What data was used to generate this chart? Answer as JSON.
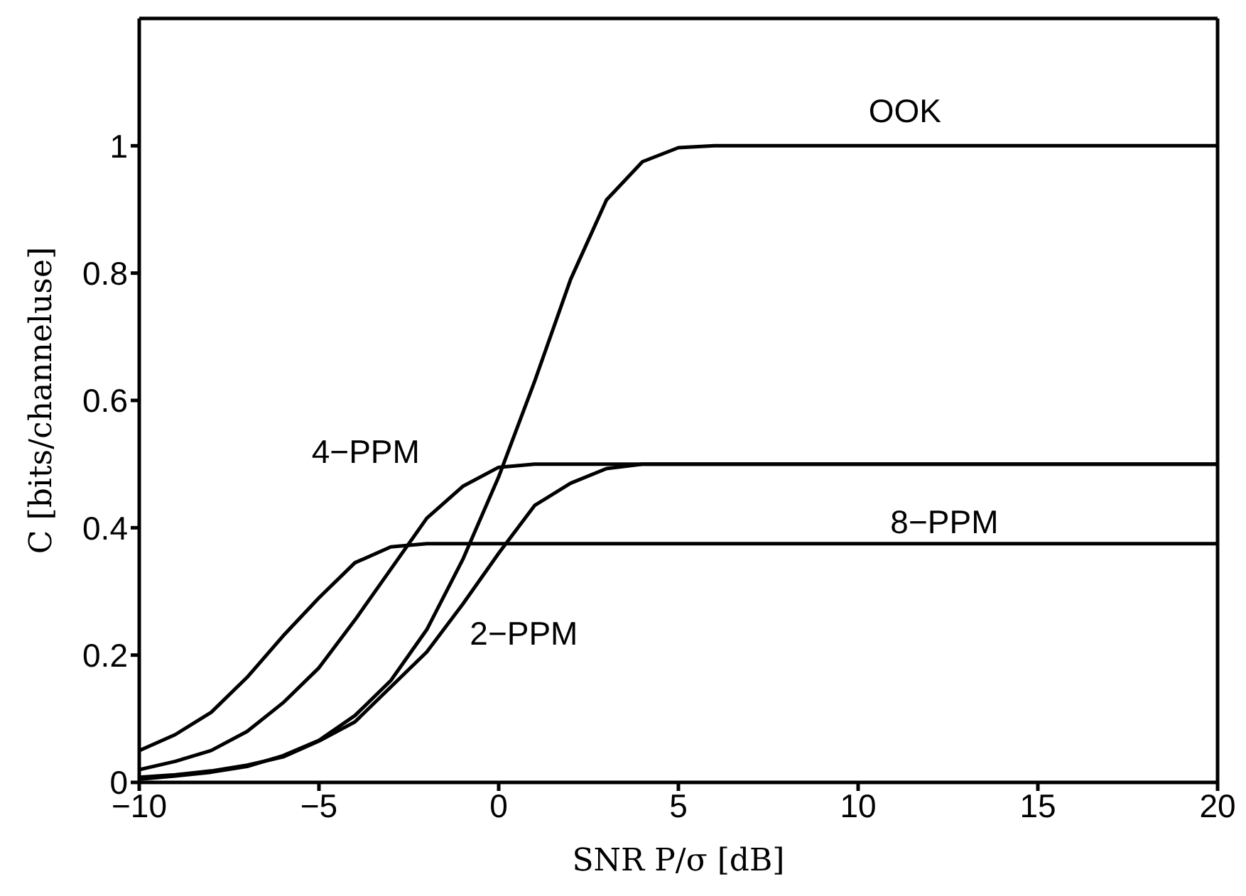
{
  "chart_data": {
    "type": "line",
    "xlabel": "SNR P/σ   [dB]",
    "ylabel": "C [bits/channeluse]",
    "xlim": [
      -10,
      20
    ],
    "ylim": [
      0,
      1.2
    ],
    "xticks": [
      -10,
      -5,
      0,
      5,
      10,
      15,
      20
    ],
    "yticks": [
      0,
      0.2,
      0.4,
      0.6,
      0.8,
      1
    ],
    "grid": false,
    "legend": false,
    "marker": "none",
    "line_style": "solid",
    "series": [
      {
        "name": "OOK",
        "color": "#000000",
        "x": [
          -10,
          -9,
          -8,
          -7,
          -6,
          -5,
          -4,
          -3,
          -2,
          -1,
          0,
          1,
          2,
          3,
          4,
          5,
          6,
          20
        ],
        "values": [
          0.005,
          0.01,
          0.016,
          0.025,
          0.042,
          0.066,
          0.105,
          0.16,
          0.24,
          0.35,
          0.48,
          0.63,
          0.79,
          0.915,
          0.975,
          0.997,
          1.0,
          1.0
        ]
      },
      {
        "name": "2−PPM",
        "color": "#000000",
        "x": [
          -10,
          -9,
          -8,
          -7,
          -6,
          -5,
          -4,
          -3,
          -2,
          -1,
          0,
          1,
          2,
          3,
          4,
          20
        ],
        "values": [
          0.008,
          0.012,
          0.018,
          0.027,
          0.04,
          0.065,
          0.095,
          0.15,
          0.205,
          0.28,
          0.36,
          0.435,
          0.47,
          0.493,
          0.5,
          0.5
        ]
      },
      {
        "name": "4−PPM",
        "color": "#000000",
        "x": [
          -10,
          -9,
          -8,
          -7,
          -6,
          -5,
          -4,
          -3,
          -2,
          -1,
          0,
          1,
          20
        ],
        "values": [
          0.02,
          0.033,
          0.05,
          0.08,
          0.125,
          0.18,
          0.255,
          0.335,
          0.415,
          0.465,
          0.495,
          0.5,
          0.5
        ]
      },
      {
        "name": "8−PPM",
        "color": "#000000",
        "x": [
          -10,
          -9,
          -8,
          -7,
          -6,
          -5,
          -4,
          -3,
          -2,
          20
        ],
        "values": [
          0.05,
          0.075,
          0.11,
          0.165,
          0.23,
          0.29,
          0.345,
          0.37,
          0.375,
          0.375
        ]
      }
    ]
  }
}
